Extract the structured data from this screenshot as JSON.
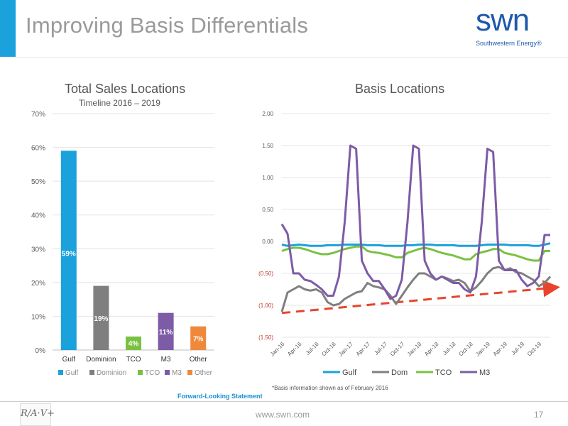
{
  "slide": {
    "title": "Improving Basis Differentials",
    "logo_text": "swn",
    "logo_subtext": "Southwestern Energy®",
    "footnote": "*Basis information shown as of February 2016",
    "forward_looking": "Forward-Looking Statement",
    "url": "www.swn.com",
    "page_number": "17",
    "footer_logo_text": "R/A·V+"
  },
  "colors": {
    "accent": "#1ba1dc",
    "logo": "#1e5aa8",
    "trend_arrow": "#e8442d"
  },
  "chart_data": [
    {
      "type": "bar",
      "title": "Total Sales Locations",
      "subtitle": "Timeline 2016 – 2019",
      "categories": [
        "Gulf",
        "Dominion",
        "TCO",
        "M3",
        "Other"
      ],
      "values": [
        59,
        19,
        4,
        11,
        7
      ],
      "value_labels": [
        "59%",
        "19%",
        "4%",
        "11%",
        "7%"
      ],
      "colors": [
        "#1ba1dc",
        "#7f7f7f",
        "#7ac143",
        "#7d5ba6",
        "#f0883a"
      ],
      "ylim": [
        0,
        70
      ],
      "yticks": [
        "0%",
        "10%",
        "20%",
        "30%",
        "40%",
        "50%",
        "60%",
        "70%"
      ],
      "grid": true,
      "legend": [
        "Gulf",
        "Dominion",
        "TCO",
        "M3",
        "Other"
      ],
      "legend_position": "bottom"
    },
    {
      "type": "line",
      "title": "Basis Locations",
      "x": [
        "Jan-16",
        "Feb-16",
        "Mar-16",
        "Apr-16",
        "May-16",
        "Jun-16",
        "Jul-16",
        "Aug-16",
        "Sep-16",
        "Oct-16",
        "Nov-16",
        "Dec-16",
        "Jan-17",
        "Feb-17",
        "Mar-17",
        "Apr-17",
        "May-17",
        "Jun-17",
        "Jul-17",
        "Aug-17",
        "Sep-17",
        "Oct-17",
        "Nov-17",
        "Dec-17",
        "Jan-18",
        "Feb-18",
        "Mar-18",
        "Apr-18",
        "May-18",
        "Jun-18",
        "Jul-18",
        "Aug-18",
        "Sep-18",
        "Oct-18",
        "Nov-18",
        "Dec-18",
        "Jan-19",
        "Feb-19",
        "Mar-19",
        "Apr-19",
        "May-19",
        "Jun-19",
        "Jul-19",
        "Aug-19",
        "Sep-19",
        "Oct-19",
        "Nov-19",
        "Dec-19"
      ],
      "xtick_labels": [
        "Jan-16",
        "Apr-16",
        "Jul-16",
        "Oct-16",
        "Jan-17",
        "Apr-17",
        "Jul-17",
        "Oct-17",
        "Jan-18",
        "Apr-18",
        "Jul-18",
        "Oct-18",
        "Jan-19",
        "Apr-19",
        "Jul-19",
        "Oct-19"
      ],
      "ylim": [
        -1.5,
        2.0
      ],
      "yticks": [
        2.0,
        1.5,
        1.0,
        0.5,
        0.0,
        -0.5,
        -1.0,
        -1.5
      ],
      "ytick_labels": [
        "2.00",
        "1.50",
        "1.00",
        "0.50",
        "0.00",
        "(0.50)",
        "(1.00)",
        "(1.50)"
      ],
      "grid": true,
      "legend_position": "bottom",
      "series": [
        {
          "name": "Gulf",
          "color": "#1ba1dc",
          "values": [
            -0.05,
            -0.07,
            -0.06,
            -0.05,
            -0.06,
            -0.07,
            -0.07,
            -0.07,
            -0.06,
            -0.06,
            -0.06,
            -0.05,
            -0.05,
            -0.05,
            -0.05,
            -0.06,
            -0.06,
            -0.06,
            -0.07,
            -0.07,
            -0.07,
            -0.07,
            -0.06,
            -0.06,
            -0.05,
            -0.05,
            -0.05,
            -0.06,
            -0.06,
            -0.06,
            -0.06,
            -0.07,
            -0.07,
            -0.07,
            -0.07,
            -0.06,
            -0.05,
            -0.05,
            -0.05,
            -0.05,
            -0.06,
            -0.06,
            -0.06,
            -0.06,
            -0.07,
            -0.07,
            -0.05,
            -0.03
          ]
        },
        {
          "name": "Dom",
          "color": "#7f7f7f",
          "values": [
            -1.1,
            -0.8,
            -0.75,
            -0.7,
            -0.75,
            -0.77,
            -0.75,
            -0.8,
            -0.95,
            -1.0,
            -0.98,
            -0.9,
            -0.85,
            -0.8,
            -0.78,
            -0.65,
            -0.7,
            -0.72,
            -0.75,
            -0.85,
            -0.98,
            -0.85,
            -0.72,
            -0.6,
            -0.5,
            -0.5,
            -0.55,
            -0.6,
            -0.55,
            -0.58,
            -0.62,
            -0.6,
            -0.65,
            -0.78,
            -0.72,
            -0.62,
            -0.5,
            -0.42,
            -0.4,
            -0.45,
            -0.42,
            -0.48,
            -0.5,
            -0.55,
            -0.6,
            -0.7,
            -0.65,
            -0.55
          ]
        },
        {
          "name": "TCO",
          "color": "#7ac143",
          "values": [
            -0.15,
            -0.12,
            -0.1,
            -0.1,
            -0.12,
            -0.15,
            -0.18,
            -0.2,
            -0.2,
            -0.18,
            -0.15,
            -0.12,
            -0.1,
            -0.08,
            -0.08,
            -0.15,
            -0.17,
            -0.18,
            -0.2,
            -0.22,
            -0.25,
            -0.25,
            -0.18,
            -0.15,
            -0.12,
            -0.1,
            -0.12,
            -0.15,
            -0.18,
            -0.2,
            -0.22,
            -0.25,
            -0.28,
            -0.28,
            -0.2,
            -0.17,
            -0.15,
            -0.12,
            -0.12,
            -0.18,
            -0.2,
            -0.22,
            -0.25,
            -0.28,
            -0.3,
            -0.3,
            -0.15,
            -0.15
          ]
        },
        {
          "name": "M3",
          "color": "#7d5ba6",
          "values": [
            0.27,
            0.12,
            -0.5,
            -0.5,
            -0.6,
            -0.62,
            -0.68,
            -0.75,
            -0.85,
            -0.85,
            -0.55,
            0.3,
            1.5,
            1.45,
            -0.3,
            -0.5,
            -0.62,
            -0.62,
            -0.75,
            -0.9,
            -0.85,
            -0.6,
            0.3,
            1.5,
            1.45,
            -0.3,
            -0.5,
            -0.6,
            -0.55,
            -0.6,
            -0.65,
            -0.65,
            -0.75,
            -0.8,
            -0.55,
            0.3,
            1.45,
            1.4,
            -0.3,
            -0.45,
            -0.45,
            -0.45,
            -0.6,
            -0.7,
            -0.65,
            -0.55,
            0.1,
            0.1
          ]
        }
      ],
      "trend_line": {
        "from": -1.12,
        "to": -0.72,
        "style": "dashed",
        "color": "#e8442d",
        "arrow": true
      }
    }
  ]
}
